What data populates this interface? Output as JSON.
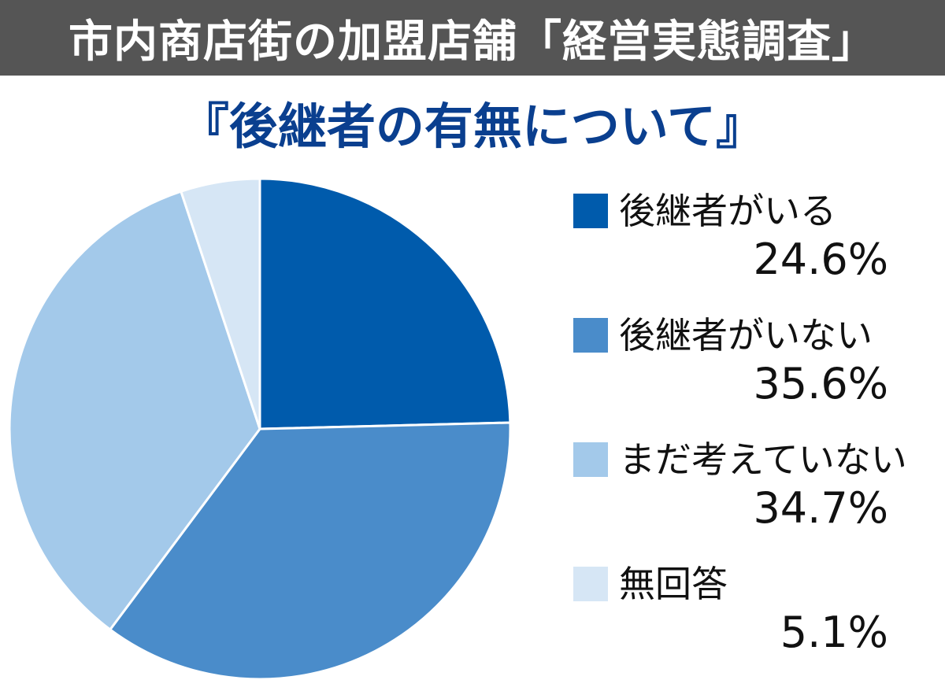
{
  "header": {
    "title": "市内商店街の加盟店舗「経営実態調査」",
    "subtitle": "『後継者の有無について』"
  },
  "colors": {
    "header_bg": "#555555",
    "subtitle": "#0a3f8f"
  },
  "chart_data": {
    "type": "pie",
    "title": "『後継者の有無について』",
    "unit": "%",
    "legend_position": "right",
    "slices": [
      {
        "label": "後継者がいる",
        "value": 24.6,
        "value_text": "24.6%",
        "color": "#005bac"
      },
      {
        "label": "後継者がいない",
        "value": 35.6,
        "value_text": "35.6%",
        "color": "#4a8cca"
      },
      {
        "label": "まだ考えていない",
        "value": 34.7,
        "value_text": "34.7%",
        "color": "#a3c9ea"
      },
      {
        "label": "無回答",
        "value": 5.1,
        "value_text": "5.1%",
        "color": "#d6e6f5"
      }
    ]
  }
}
